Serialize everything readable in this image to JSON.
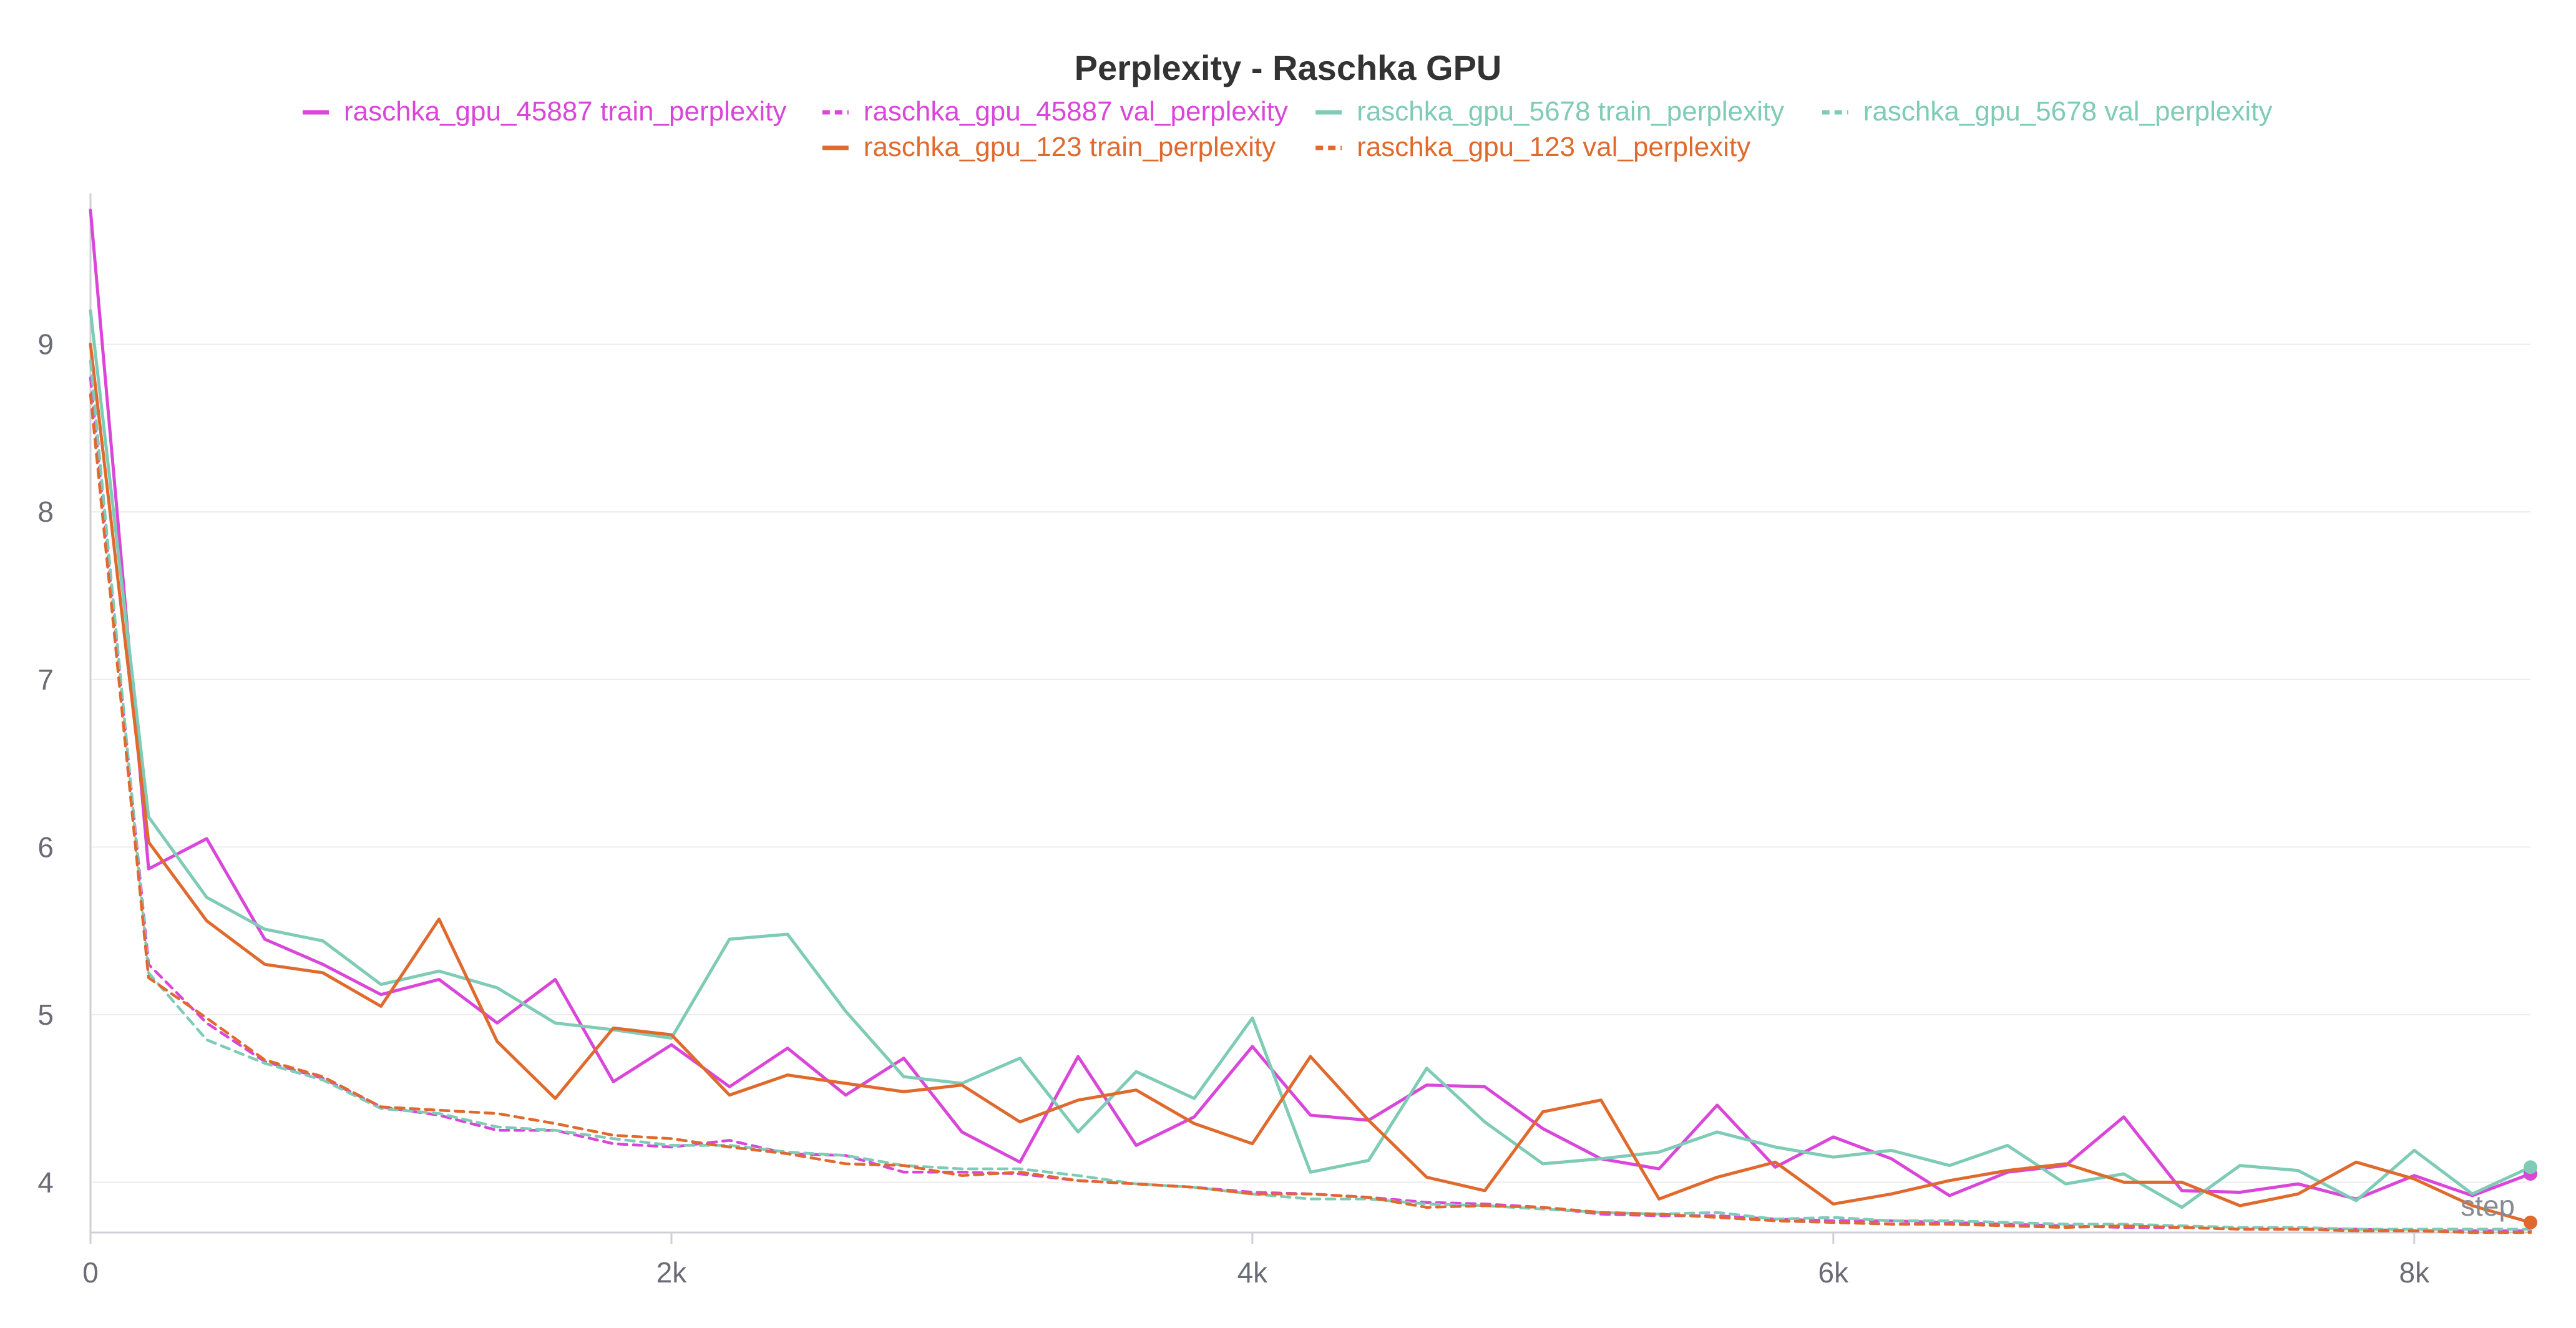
{
  "chart_data": {
    "type": "line",
    "title": "Perplexity - Raschka GPU",
    "xlabel": "step",
    "ylabel": "",
    "xlim": [
      0,
      8400
    ],
    "ylim": [
      3.7,
      9.9
    ],
    "xticks": [
      {
        "value": 0,
        "label": "0"
      },
      {
        "value": 2000,
        "label": "2k"
      },
      {
        "value": 4000,
        "label": "4k"
      },
      {
        "value": 6000,
        "label": "6k"
      },
      {
        "value": 8000,
        "label": "8k"
      }
    ],
    "yticks": [
      {
        "value": 4,
        "label": "4"
      },
      {
        "value": 5,
        "label": "5"
      },
      {
        "value": 6,
        "label": "6"
      },
      {
        "value": 7,
        "label": "7"
      },
      {
        "value": 8,
        "label": "8"
      },
      {
        "value": 9,
        "label": "9"
      }
    ],
    "x": [
      0,
      200,
      400,
      600,
      800,
      1000,
      1200,
      1400,
      1600,
      1800,
      2000,
      2200,
      2400,
      2600,
      2800,
      3000,
      3200,
      3400,
      3600,
      3800,
      4000,
      4200,
      4400,
      4600,
      4800,
      5000,
      5200,
      5400,
      5600,
      5800,
      6000,
      6200,
      6400,
      6600,
      6800,
      7000,
      7200,
      7400,
      7600,
      7800,
      8000,
      8200,
      8400
    ],
    "series": [
      {
        "name": "raschka_gpu_45887 train_perplexity",
        "color": "#d946d9",
        "dash": false,
        "values": [
          9.8,
          5.87,
          6.05,
          5.45,
          5.3,
          5.12,
          5.21,
          4.95,
          5.21,
          4.6,
          4.82,
          4.57,
          4.8,
          4.52,
          4.74,
          4.3,
          4.12,
          4.75,
          4.22,
          4.39,
          4.81,
          4.4,
          4.37,
          4.58,
          4.57,
          4.32,
          4.14,
          4.08,
          4.46,
          4.09,
          4.27,
          4.14,
          3.92,
          4.06,
          4.1,
          4.39,
          3.95,
          3.94,
          3.99,
          3.9,
          4.04,
          3.92,
          4.05
        ]
      },
      {
        "name": "raschka_gpu_45887 val_perplexity",
        "color": "#d946d9",
        "dash": true,
        "values": [
          8.8,
          5.3,
          4.95,
          4.72,
          4.62,
          4.45,
          4.4,
          4.31,
          4.31,
          4.23,
          4.21,
          4.25,
          4.17,
          4.16,
          4.06,
          4.06,
          4.05,
          4.01,
          3.99,
          3.97,
          3.94,
          3.93,
          3.91,
          3.88,
          3.87,
          3.85,
          3.81,
          3.8,
          3.8,
          3.78,
          3.77,
          3.77,
          3.76,
          3.75,
          3.74,
          3.73,
          3.73,
          3.72,
          3.72,
          3.72,
          3.71,
          3.71,
          3.71
        ]
      },
      {
        "name": "raschka_gpu_5678 train_perplexity",
        "color": "#7ecbb6",
        "dash": false,
        "values": [
          9.2,
          6.18,
          5.7,
          5.51,
          5.44,
          5.18,
          5.26,
          5.16,
          4.95,
          4.91,
          4.86,
          5.45,
          5.48,
          5.02,
          4.63,
          4.59,
          4.74,
          4.3,
          4.66,
          4.5,
          4.98,
          4.06,
          4.13,
          4.68,
          4.36,
          4.11,
          4.14,
          4.18,
          4.3,
          4.21,
          4.15,
          4.19,
          4.1,
          4.22,
          3.99,
          4.05,
          3.85,
          4.1,
          4.07,
          3.89,
          4.19,
          3.93,
          4.09
        ]
      },
      {
        "name": "raschka_gpu_5678 val_perplexity",
        "color": "#7ecbb6",
        "dash": true,
        "values": [
          8.9,
          5.25,
          4.85,
          4.71,
          4.61,
          4.44,
          4.41,
          4.33,
          4.31,
          4.26,
          4.22,
          4.22,
          4.18,
          4.16,
          4.1,
          4.08,
          4.08,
          4.04,
          3.99,
          3.97,
          3.93,
          3.9,
          3.9,
          3.87,
          3.86,
          3.84,
          3.82,
          3.81,
          3.82,
          3.78,
          3.79,
          3.77,
          3.77,
          3.76,
          3.75,
          3.75,
          3.74,
          3.73,
          3.73,
          3.72,
          3.72,
          3.72,
          3.72
        ]
      },
      {
        "name": "raschka_gpu_123 train_perplexity",
        "color": "#e06a2e",
        "dash": false,
        "values": [
          9.0,
          6.03,
          5.56,
          5.3,
          5.25,
          5.05,
          5.57,
          4.84,
          4.5,
          4.92,
          4.88,
          4.52,
          4.64,
          4.59,
          4.54,
          4.58,
          4.36,
          4.49,
          4.55,
          4.35,
          4.23,
          4.75,
          4.37,
          4.03,
          3.95,
          4.42,
          4.49,
          3.9,
          4.03,
          4.12,
          3.87,
          3.93,
          4.01,
          4.07,
          4.11,
          4.0,
          4.0,
          3.86,
          3.93,
          4.12,
          4.02,
          3.86,
          3.76
        ]
      },
      {
        "name": "raschka_gpu_123 val_perplexity",
        "color": "#e06a2e",
        "dash": true,
        "values": [
          8.7,
          5.22,
          4.98,
          4.73,
          4.63,
          4.45,
          4.43,
          4.41,
          4.35,
          4.28,
          4.26,
          4.21,
          4.17,
          4.11,
          4.1,
          4.04,
          4.06,
          4.01,
          3.99,
          3.97,
          3.93,
          3.93,
          3.91,
          3.85,
          3.86,
          3.85,
          3.82,
          3.81,
          3.79,
          3.77,
          3.76,
          3.75,
          3.75,
          3.74,
          3.73,
          3.74,
          3.73,
          3.72,
          3.72,
          3.71,
          3.71,
          3.7,
          3.7
        ]
      }
    ],
    "legend_position": "top-center"
  }
}
